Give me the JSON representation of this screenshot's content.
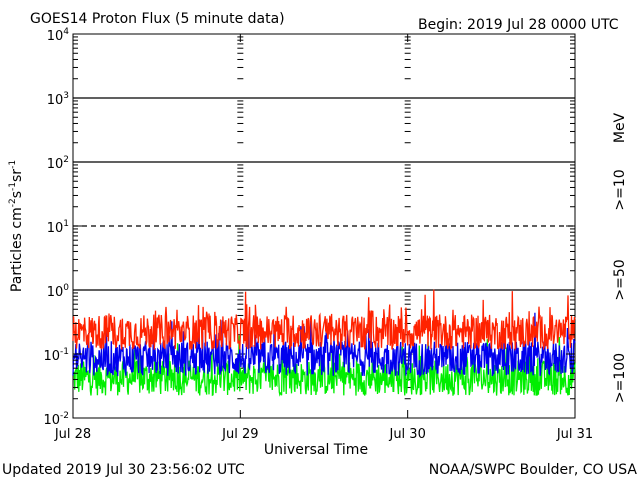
{
  "chart_data": {
    "type": "line",
    "title": "GOES14 Proton Flux (5 minute data)",
    "begin_label": "Begin: 2019 Jul 28 0000 UTC",
    "xlabel": "Universal Time",
    "ylabel": "Particles cm-2s-1sr-1",
    "ylabel_parts": {
      "base": "Particles cm",
      "e1": "-2",
      "mid": "s",
      "e2": "-1",
      "mid2": "sr",
      "e3": "-1"
    },
    "y_scale": "log",
    "ylim": [
      0.01,
      10000
    ],
    "y_ticks": [
      {
        "value": 0.01,
        "base": "10",
        "exp": "-2"
      },
      {
        "value": 0.1,
        "base": "10",
        "exp": "-1"
      },
      {
        "value": 1,
        "base": "10",
        "exp": "0"
      },
      {
        "value": 10,
        "base": "10",
        "exp": "1"
      },
      {
        "value": 100,
        "base": "10",
        "exp": "2"
      },
      {
        "value": 1000,
        "base": "10",
        "exp": "3"
      },
      {
        "value": 10000,
        "base": "10",
        "exp": "4"
      }
    ],
    "x_ticks": [
      {
        "value": 0,
        "label": "Jul 28"
      },
      {
        "value": 1,
        "label": "Jul 29"
      },
      {
        "value": 2,
        "label": "Jul 30"
      },
      {
        "value": 3,
        "label": "Jul 31"
      }
    ],
    "xlim": [
      0,
      3
    ],
    "threshold_lines": [
      {
        "value": 1,
        "style": "solid"
      },
      {
        "value": 10,
        "style": "dashed"
      },
      {
        "value": 100,
        "style": "solid"
      },
      {
        "value": 1000,
        "style": "solid"
      }
    ],
    "series": [
      {
        "name": ">=10",
        "color": "#ff2200",
        "level": 0.22,
        "spread": 0.55,
        "data_end": 3.0
      },
      {
        "name": ">=50",
        "color": "#0000ee",
        "level": 0.085,
        "spread": 0.55,
        "data_end": 3.0
      },
      {
        "name": ">=100",
        "color": "#00ee00",
        "level": 0.042,
        "spread": 0.55,
        "data_end": 3.0
      }
    ],
    "unit_label": "MeV"
  },
  "footer": {
    "updated": "Updated 2019 Jul 30 23:56:02 UTC",
    "credit": "NOAA/SWPC Boulder, CO USA"
  }
}
